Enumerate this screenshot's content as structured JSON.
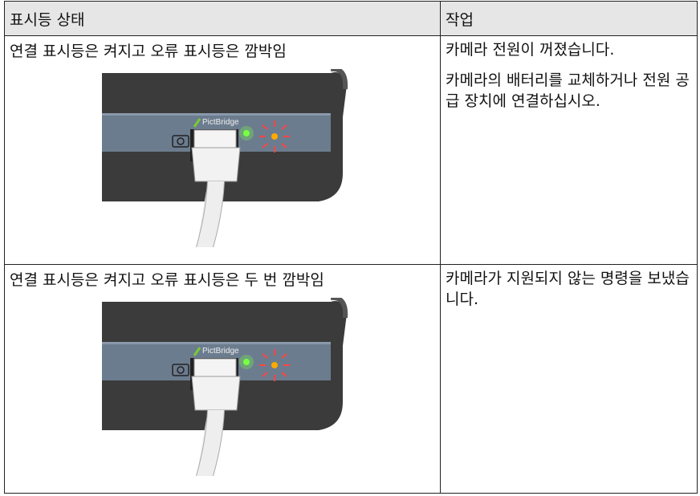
{
  "table": {
    "header": [
      "표시등 상태",
      "작업"
    ],
    "rows": [
      {
        "status": "연결 표시등은 켜지고 오류 표시등은 깜박임",
        "image_label": "PictBridge",
        "actions": [
          "카메라 전원이 꺼졌습니다.",
          "카메라의 배터리를 교체하거나 전원 공급 장치에 연결하십시오."
        ]
      },
      {
        "status": "연결 표시등은 켜지고 오류 표시등은 두 번 깜박임",
        "image_label": "PictBridge",
        "actions": [
          "카메라가 지원되지 않는 명령을 보냈습니다."
        ]
      }
    ]
  }
}
